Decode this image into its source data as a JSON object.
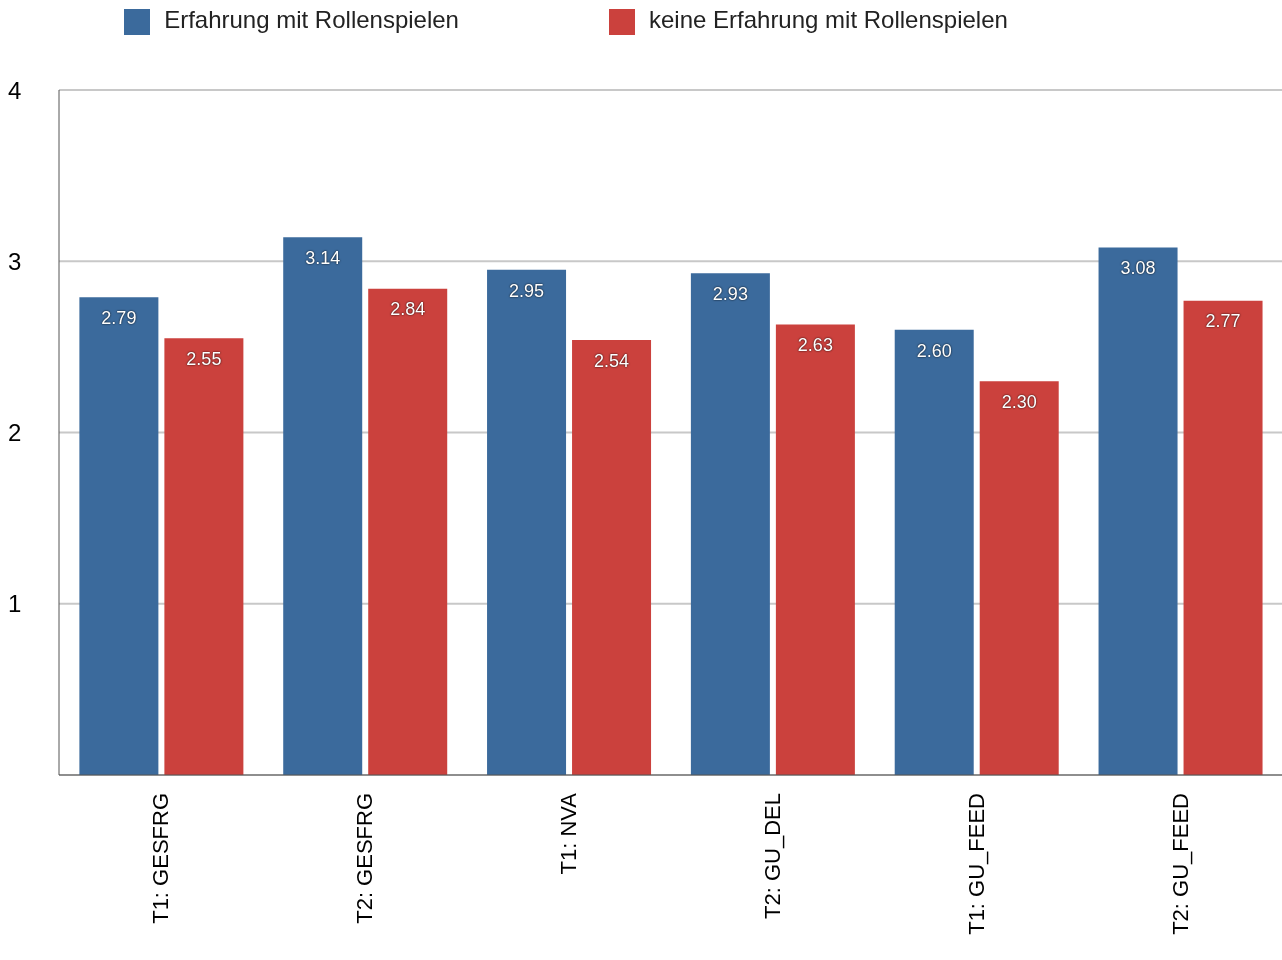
{
  "chart_data": {
    "type": "bar",
    "categories": [
      "T1: GESFRG",
      "T2: GESFRG",
      "T1: NVA",
      "T2: GU_DEL",
      "T1: GU_FEED",
      "T2: GU_FEED"
    ],
    "series": [
      {
        "name": "Erfahrung mit Rollenspielen",
        "color": "#3b6a9c",
        "values": [
          2.79,
          3.14,
          2.95,
          2.93,
          2.6,
          3.08
        ],
        "value_labels": [
          "2.79",
          "3.14",
          "2.95",
          "2.93",
          "2.60",
          "3.08"
        ]
      },
      {
        "name": "keine Erfahrung mit Rollenspielen",
        "color": "#cb413d",
        "values": [
          2.55,
          2.84,
          2.54,
          2.63,
          2.3,
          2.77
        ],
        "value_labels": [
          "2.55",
          "2.84",
          "2.54",
          "2.63",
          "2.30",
          "2.77"
        ]
      }
    ],
    "ylim": [
      0,
      4
    ],
    "yticks": [
      1,
      2,
      3,
      4
    ],
    "grid": "y",
    "legend": "top"
  }
}
